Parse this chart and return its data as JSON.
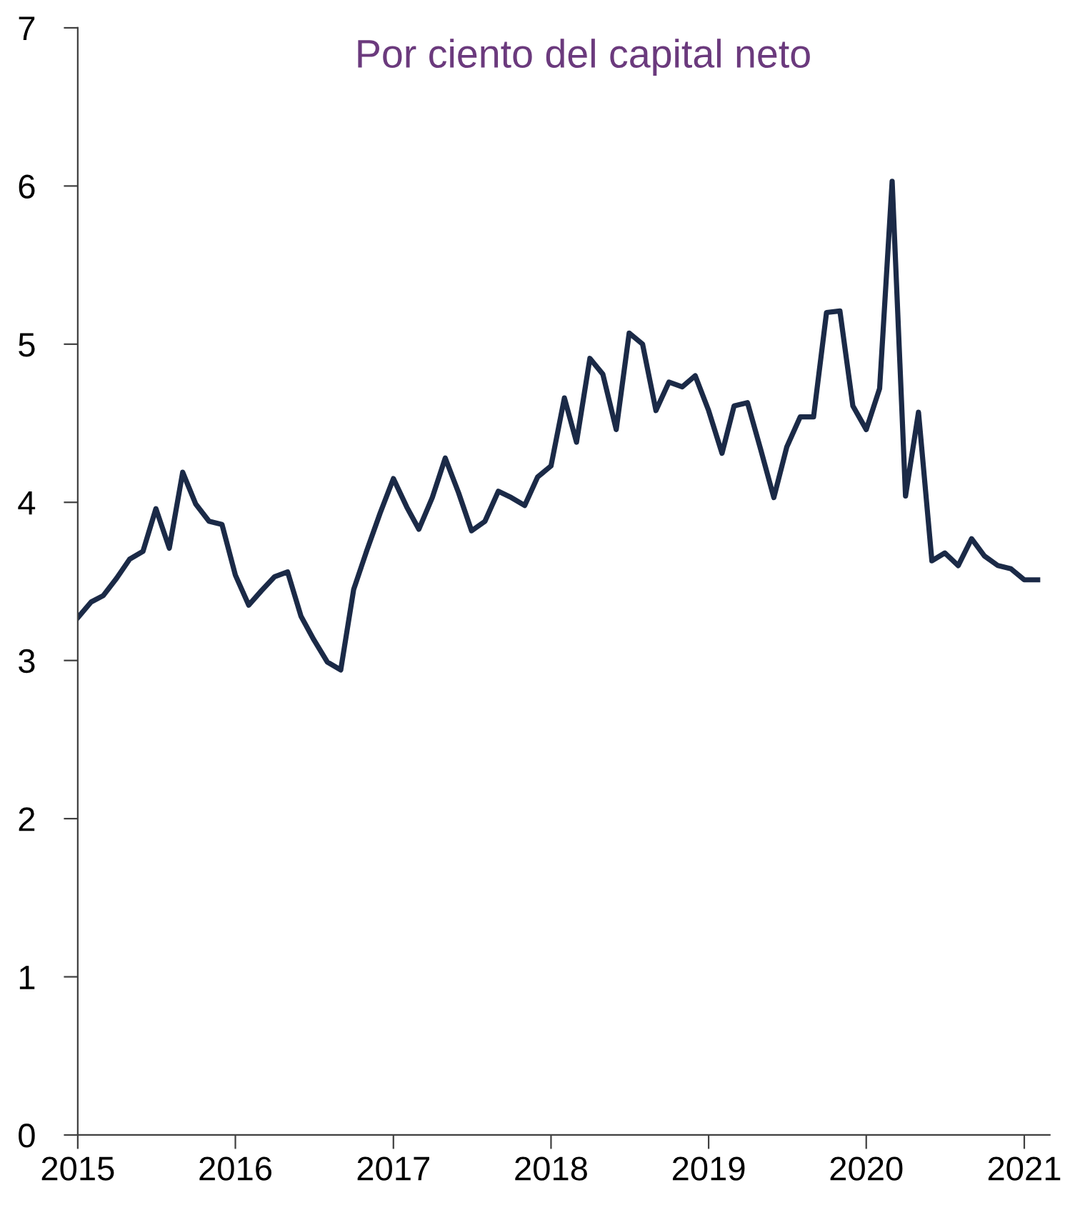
{
  "chart_data": {
    "type": "line",
    "subtitle": "Por ciento del capital neto",
    "x": [
      "2015-01",
      "2015-02",
      "2015-03",
      "2015-04",
      "2015-05",
      "2015-06",
      "2015-07",
      "2015-08",
      "2015-09",
      "2015-10",
      "2015-11",
      "2015-12",
      "2016-01",
      "2016-02",
      "2016-03",
      "2016-04",
      "2016-05",
      "2016-06",
      "2016-07",
      "2016-08",
      "2016-09",
      "2016-10",
      "2016-11",
      "2016-12",
      "2017-01",
      "2017-02",
      "2017-03",
      "2017-04",
      "2017-05",
      "2017-06",
      "2017-07",
      "2017-08",
      "2017-09",
      "2017-10",
      "2017-11",
      "2017-12",
      "2018-01",
      "2018-02",
      "2018-03",
      "2018-04",
      "2018-05",
      "2018-06",
      "2018-07",
      "2018-08",
      "2018-09",
      "2018-10",
      "2018-11",
      "2018-12",
      "2019-01",
      "2019-02",
      "2019-03",
      "2019-04",
      "2019-05",
      "2019-06",
      "2019-07",
      "2019-08",
      "2019-09",
      "2019-10",
      "2019-11",
      "2019-12",
      "2020-01",
      "2020-02",
      "2020-03",
      "2020-04",
      "2020-05",
      "2020-06",
      "2020-07",
      "2020-08",
      "2020-09",
      "2020-10",
      "2020-11",
      "2020-12",
      "2021-01",
      "2021-02"
    ],
    "series": [
      {
        "color": "#1b2a47",
        "values": [
          3.27,
          3.37,
          3.41,
          3.52,
          3.64,
          3.69,
          3.96,
          3.71,
          4.19,
          3.99,
          3.88,
          3.86,
          3.54,
          3.35,
          3.44,
          3.53,
          3.56,
          3.28,
          3.13,
          2.99,
          2.94,
          3.45,
          3.7,
          3.93,
          4.15,
          3.97,
          3.83,
          4.03,
          4.28,
          4.06,
          3.82,
          3.88,
          4.07,
          4.03,
          3.98,
          4.16,
          4.23,
          4.66,
          4.38,
          4.91,
          4.81,
          4.46,
          5.07,
          5.0,
          4.58,
          4.76,
          4.73,
          4.8,
          4.58,
          4.31,
          4.61,
          4.63,
          4.34,
          4.03,
          4.35,
          4.54,
          4.54,
          5.2,
          5.21,
          4.61,
          4.46,
          4.72,
          6.03,
          4.04,
          4.57,
          3.63,
          3.68,
          3.6,
          3.77,
          3.66,
          3.6,
          3.58,
          3.51,
          3.51
        ]
      }
    ],
    "xlim": [
      "2015-01",
      "2021-03"
    ],
    "xticks": [
      "2015",
      "2016",
      "2017",
      "2018",
      "2019",
      "2020",
      "2021"
    ],
    "ylim": [
      0,
      7
    ],
    "yticks": [
      0,
      1,
      2,
      3,
      4,
      5,
      6,
      7
    ],
    "grid": false,
    "marker": "none",
    "line_style": "solid"
  }
}
